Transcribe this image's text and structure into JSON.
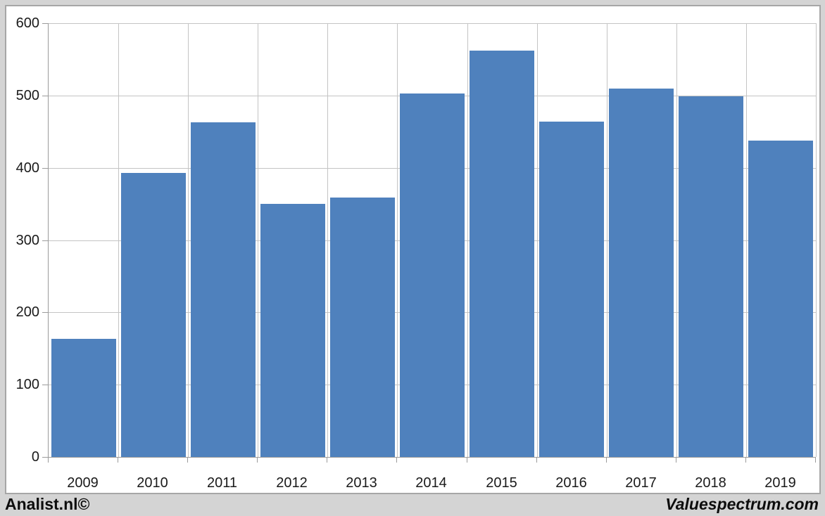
{
  "chart_data": {
    "type": "bar",
    "categories": [
      "2009",
      "2010",
      "2011",
      "2012",
      "2013",
      "2014",
      "2015",
      "2016",
      "2017",
      "2018",
      "2019"
    ],
    "values": [
      163,
      393,
      463,
      350,
      359,
      503,
      562,
      464,
      510,
      499,
      438
    ],
    "title": "",
    "xlabel": "",
    "ylabel": "",
    "ylim": [
      0,
      600
    ],
    "yticks": [
      0,
      100,
      200,
      300,
      400,
      500,
      600
    ],
    "grid": true,
    "legend": "none",
    "bar_color": "#4f81bd",
    "gridline_color": "#c4c4c4",
    "axis_color": "#9b9b9b",
    "plot_background": "#ffffff",
    "frame_background": "#d4d4d4"
  },
  "footer": {
    "left_text": "Analist.nl©",
    "right_text": "Valuespectrum.com"
  }
}
